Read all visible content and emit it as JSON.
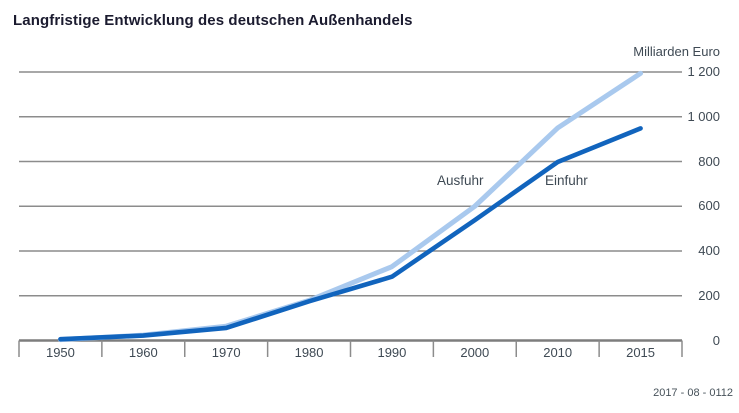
{
  "header": {
    "title": "Langfristige Entwicklung des deutschen Außenhandels"
  },
  "axes": {
    "unit_label": "Milliarden Euro",
    "y_tick_labels": [
      "1 200",
      "1 000",
      "800",
      "600",
      "400",
      "200",
      "0"
    ],
    "x_tick_labels": [
      "1950",
      "1960",
      "1970",
      "1980",
      "1990",
      "2000",
      "2010",
      "2015"
    ]
  },
  "footer": {
    "note": "2017 - 08 - 0112"
  },
  "colors": {
    "ausfuhr_light_blue": "#a9c9ee",
    "einfuhr_dark_blue": "#1164bd",
    "gridline_gray": "#8c8c8c",
    "axis_gray": "#7d7d7d",
    "label_text": "#3f4a54",
    "title_text": "#1b1b2f"
  },
  "chart_data": {
    "type": "line",
    "title": "Langfristige Entwicklung des deutschen Außenhandels",
    "ylabel": "Milliarden Euro",
    "xlabel": "",
    "categories": [
      "1950",
      "1960",
      "1970",
      "1980",
      "1990",
      "2000",
      "2010",
      "2015"
    ],
    "series": [
      {
        "name": "Ausfuhr",
        "color": "#a9c9ee",
        "values": [
          4,
          24,
          64,
          179,
          330,
          600,
          950,
          1194
        ]
      },
      {
        "name": "Einfuhr",
        "color": "#1164bd",
        "values": [
          6,
          22,
          56,
          175,
          285,
          538,
          798,
          948
        ]
      }
    ],
    "ylim": [
      0,
      1200
    ],
    "ytick_step": 200,
    "grid": "horizontal",
    "legend_position": "inline-annotations",
    "note": "2017 - 08 - 0112"
  }
}
